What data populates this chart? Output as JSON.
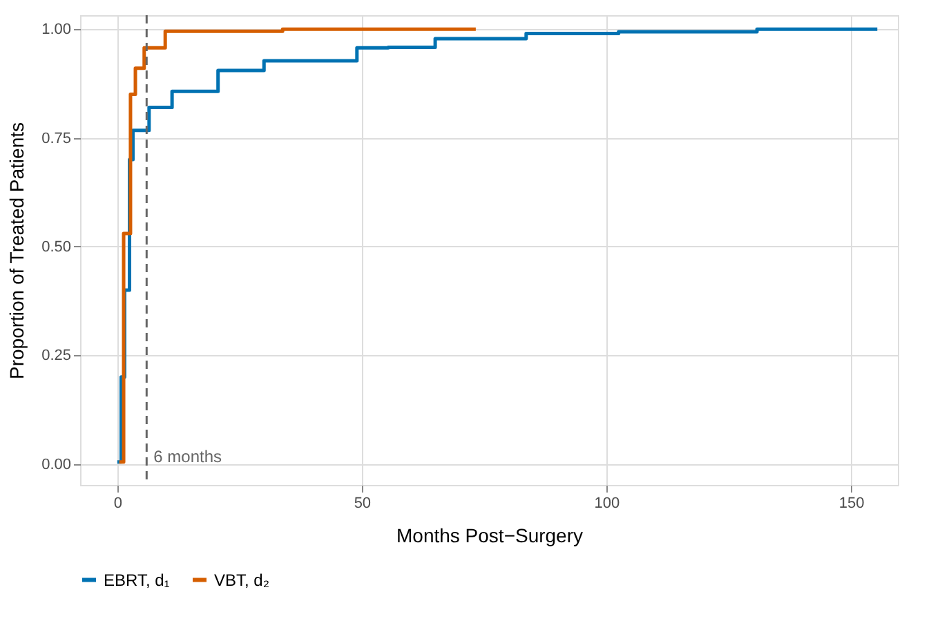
{
  "chart_data": {
    "type": "step",
    "xlabel": "Months Post−Surgery",
    "ylabel": "Proportion of Treated Patients",
    "series": [
      {
        "name": "EBRT, d₁",
        "color": "#0072b2",
        "x": [
          0,
          0.8,
          1.5,
          2.5,
          3.2,
          6.5,
          11.2,
          20.6,
          30,
          49,
          55.4,
          65,
          83.6,
          102.5,
          130.8,
          155.4
        ],
        "values": [
          0.005,
          0.2,
          0.4,
          0.7,
          0.767,
          0.82,
          0.857,
          0.905,
          0.927,
          0.957,
          0.958,
          0.978,
          0.99,
          0.994,
          1.0,
          1.0
        ]
      },
      {
        "name": "VBT, d₂",
        "color": "#d55e00",
        "x": [
          0.4,
          1.3,
          2.7,
          3.7,
          5.5,
          9.8,
          33.8,
          73.3
        ],
        "values": [
          0.005,
          0.53,
          0.85,
          0.91,
          0.957,
          0.995,
          1.0,
          1.0
        ]
      }
    ],
    "xlim": [
      -7.6,
      159.6
    ],
    "ylim": [
      -0.048,
      1.032
    ],
    "xticks": [
      0,
      50,
      100,
      150
    ],
    "yticks": [
      {
        "value": 0,
        "label": "0.00"
      },
      {
        "value": 0.25,
        "label": "0.25"
      },
      {
        "value": 0.5,
        "label": "0.50"
      },
      {
        "value": 0.75,
        "label": "0.75"
      },
      {
        "value": 1,
        "label": "1.00"
      }
    ],
    "ref_lines": [
      {
        "axis": "x",
        "value": 6,
        "label": "6 months",
        "color": "#666666",
        "line_style": "dashed"
      }
    ],
    "grid": true,
    "legend": "bottom"
  }
}
